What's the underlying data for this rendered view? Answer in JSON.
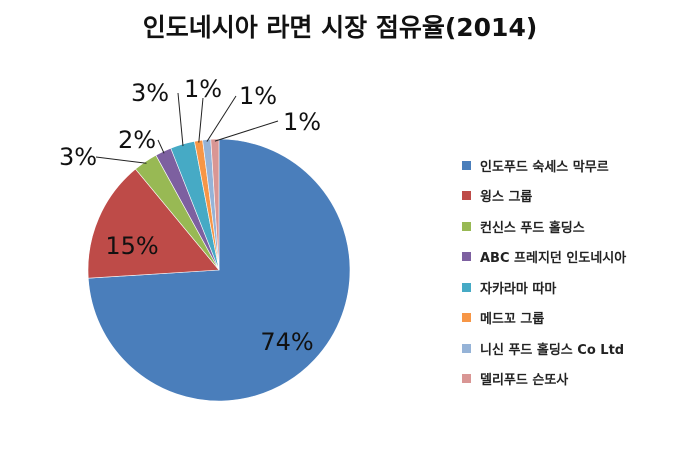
{
  "chart_data": {
    "type": "pie",
    "title": "인도네시아 라면 시장 점유율(2014)",
    "categories": [
      "인도푸드 숙세스 막무르",
      "윙스 그룹",
      "컨신스 푸드 홀딩스",
      "ABC 프레지던 인도네시아",
      "자카라마 따마",
      "메드꼬 그룹",
      "니신 푸드 홀딩스 Co Ltd",
      "델리푸드 슨또사"
    ],
    "values": [
      74,
      15,
      3,
      2,
      3,
      1,
      1,
      1
    ],
    "data_labels": [
      "74%",
      "15%",
      "3%",
      "2%",
      "3%",
      "1%",
      "1%",
      "1%"
    ],
    "colors": [
      "#4A7EBB",
      "#BE4B48",
      "#98B954",
      "#7D60A0",
      "#46AAC5",
      "#F79646",
      "#95B3D7",
      "#D99694"
    ],
    "legend_position": "right"
  }
}
